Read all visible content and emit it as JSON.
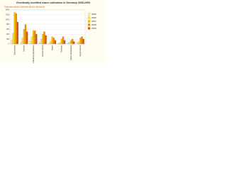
{
  "chart_data": {
    "type": "bar",
    "title": "Genetically modified maize cultivation in Germany 2005-2009",
    "subtitle": "Standortregister (planned area in hectares)",
    "categories": [
      "Brandenburg",
      "Sachsen",
      "Mecklenburg-Vorpommern",
      "Sachsen-Anhalt",
      "Bayern",
      "Thüringen",
      "Baden-Württemberg",
      "Niedersachsen"
    ],
    "series": [
      {
        "name": "2005",
        "color": "#fff2a8",
        "values": [
          150,
          80,
          120,
          60,
          40,
          20,
          30,
          50
        ]
      },
      {
        "name": "2006",
        "color": "#ffe066",
        "values": [
          450,
          250,
          300,
          200,
          120,
          60,
          80,
          100
        ]
      },
      {
        "name": "2007",
        "color": "#ffc000",
        "values": [
          1300,
          600,
          550,
          400,
          300,
          200,
          150,
          250
        ]
      },
      {
        "name": "2008",
        "color": "#f08a00",
        "values": [
          1250,
          800,
          540,
          500,
          250,
          300,
          200,
          300
        ]
      },
      {
        "name": "2009",
        "color": "#c55a11",
        "values": [
          900,
          500,
          400,
          350,
          150,
          150,
          100,
          200
        ]
      }
    ],
    "ylim": [
      0,
      1400
    ],
    "yticks": [
      0,
      200,
      400,
      600,
      800,
      1000,
      1200,
      1400
    ],
    "grid": true,
    "legend": "right"
  }
}
